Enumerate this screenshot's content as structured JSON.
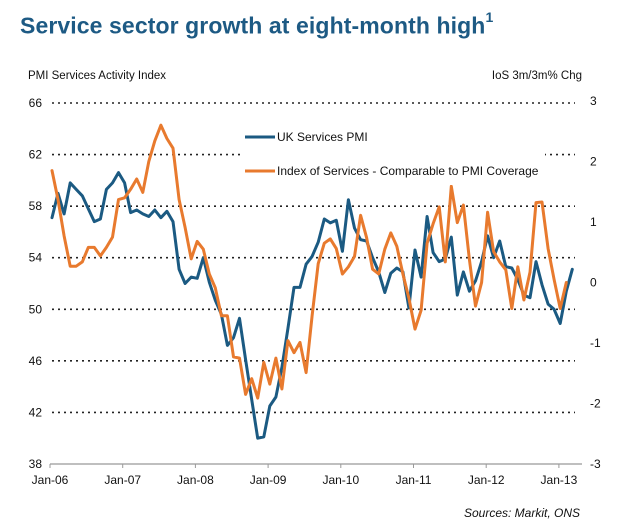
{
  "title": "Service sector growth at eight-month high",
  "title_footnote": "1",
  "left_axis_caption": "PMI Services Activity Index",
  "right_axis_caption": "IoS 3m/3m% Chg",
  "source": "Sources: Markit, ONS",
  "colors": {
    "title": "#1d5a84",
    "pmi": "#1b5a82",
    "ios": "#e87a2e",
    "grid": "#222222",
    "axis": "#999999"
  },
  "chart_data": {
    "type": "line",
    "title": "Service sector growth at eight-month high",
    "xlabel": "",
    "ylabel": "PMI Services Activity Index",
    "y2label": "IoS 3m/3m% Chg",
    "x_start": "Jan-06",
    "frequency": "monthly",
    "xticks": [
      "Jan-06",
      "Jan-07",
      "Jan-08",
      "Jan-09",
      "Jan-10",
      "Jan-11",
      "Jan-12",
      "Jan-13"
    ],
    "ylim": [
      38,
      66
    ],
    "yticks": [
      38,
      42,
      46,
      50,
      54,
      58,
      62,
      66
    ],
    "y2lim": [
      -3,
      3
    ],
    "y2ticks": [
      -3,
      -2,
      -1,
      0,
      1,
      2,
      3
    ],
    "grid": true,
    "legend_position": "top-center",
    "series": [
      {
        "name": "UK Services PMI",
        "axis": "left",
        "color": "#1b5a82",
        "values": [
          57.1,
          59.0,
          57.4,
          59.8,
          59.3,
          58.8,
          57.8,
          56.8,
          57.0,
          59.3,
          59.8,
          60.6,
          59.8,
          57.5,
          57.7,
          57.4,
          57.2,
          57.7,
          57.1,
          57.6,
          56.8,
          53.1,
          52.0,
          52.5,
          52.4,
          54.0,
          52.1,
          50.7,
          49.6,
          47.2,
          47.8,
          49.3,
          46.1,
          43.0,
          40.0,
          40.1,
          42.5,
          43.2,
          45.5,
          48.5,
          51.7,
          51.7,
          53.5,
          54.1,
          55.2,
          57.0,
          56.7,
          56.9,
          54.5,
          58.5,
          56.3,
          55.4,
          55.3,
          54.0,
          52.9,
          51.3,
          52.8,
          53.2,
          52.9,
          50.1,
          54.6,
          52.5,
          57.2,
          54.4,
          53.7,
          53.9,
          55.6,
          51.1,
          52.9,
          51.4,
          52.2,
          53.7,
          55.7,
          54.0,
          55.3,
          53.3,
          53.2,
          52.3,
          51.1,
          50.9,
          53.7,
          51.9,
          50.4,
          50.0,
          48.9,
          51.4,
          53.1
        ]
      },
      {
        "name": "Index of Services - Comparable to PMI Coverage",
        "axis": "right",
        "color": "#e87a2e",
        "values": [
          1.85,
          1.37,
          0.77,
          0.27,
          0.27,
          0.34,
          0.58,
          0.58,
          0.44,
          0.58,
          0.75,
          1.37,
          1.4,
          1.54,
          1.71,
          1.49,
          2.0,
          2.34,
          2.6,
          2.38,
          2.22,
          1.37,
          0.91,
          0.39,
          0.68,
          0.55,
          0.14,
          -0.09,
          -0.55,
          -0.55,
          -1.23,
          -1.25,
          -1.85,
          -1.59,
          -1.91,
          -1.32,
          -1.68,
          -1.25,
          -1.76,
          -0.96,
          -1.16,
          -0.99,
          -1.49,
          -0.55,
          0.31,
          0.65,
          0.72,
          0.56,
          0.14,
          0.26,
          0.43,
          1.11,
          0.74,
          0.22,
          0.14,
          0.55,
          0.82,
          0.6,
          0.14,
          -0.26,
          -0.77,
          -0.46,
          0.65,
          0.97,
          1.25,
          0.34,
          1.59,
          0.99,
          1.28,
          0.38,
          -0.39,
          0.0,
          1.16,
          0.51,
          0.34,
          0.21,
          -0.43,
          0.26,
          -0.29,
          0.17,
          1.32,
          1.33,
          0.56,
          0.05,
          -0.43,
          0.0
        ]
      }
    ]
  }
}
